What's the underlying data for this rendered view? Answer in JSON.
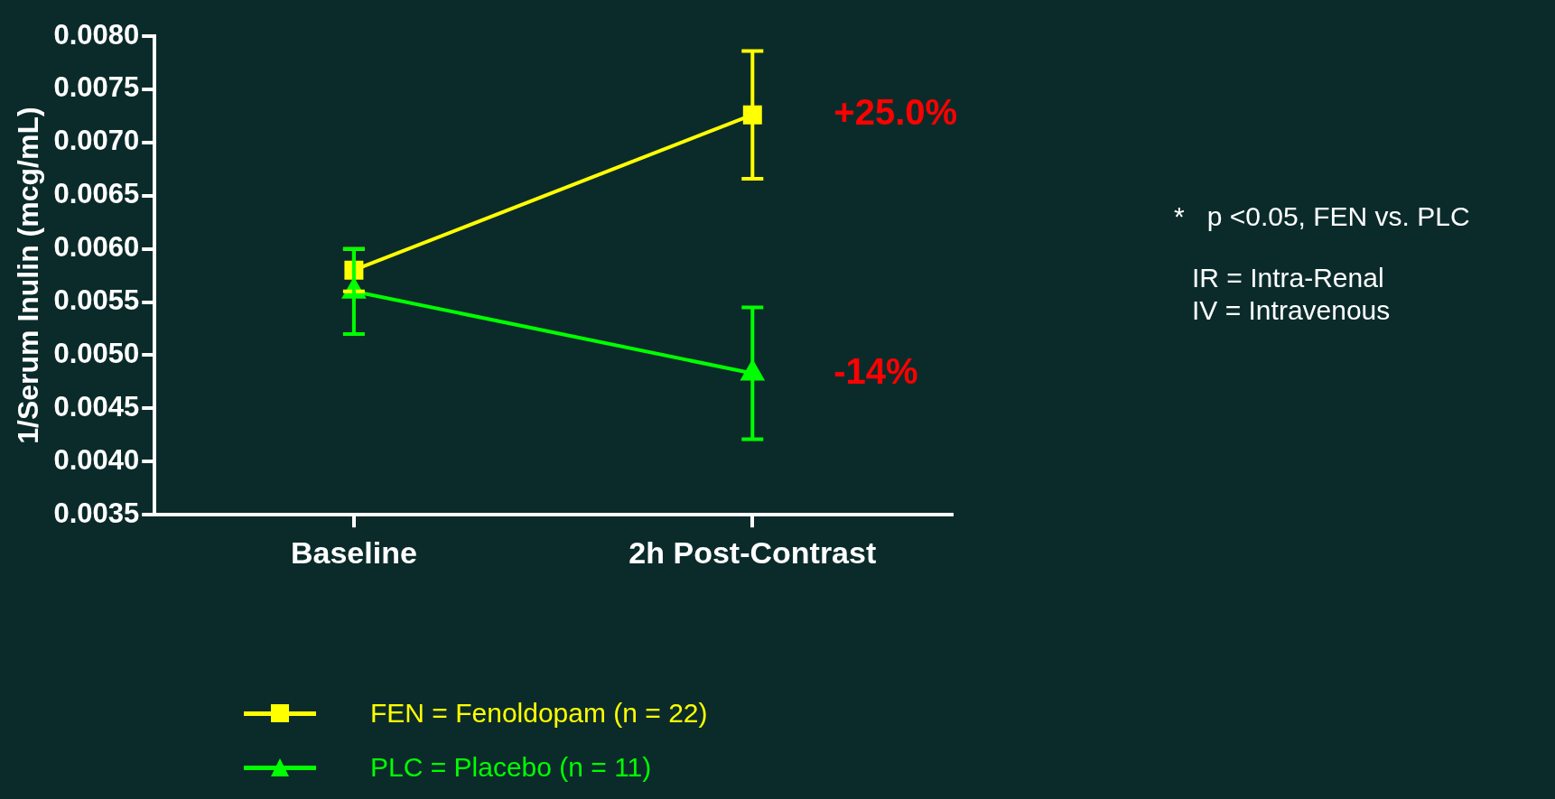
{
  "chart_data": {
    "type": "line",
    "ylabel": "1/Serum Inulin (mcg/mL)",
    "categories": [
      "Baseline",
      "2h Post-Contrast"
    ],
    "series": [
      {
        "name": "FEN = Fenoldopam (n = 22)",
        "color": "#ffff00",
        "marker": "square",
        "values": [
          0.0058,
          0.00726
        ],
        "errors": [
          0.0002,
          0.0006
        ]
      },
      {
        "name": "PLC = Placebo (n = 11)",
        "color": "#00ff00",
        "marker": "triangle",
        "values": [
          0.0056,
          0.00483
        ],
        "errors": [
          0.0004,
          0.00062
        ]
      }
    ],
    "ylim": [
      0.0035,
      0.008
    ],
    "yticks": [
      0.0035,
      {
        "value": 0.004,
        "label": "0.0040"
      },
      0.0045,
      {
        "value": 0.005,
        "label": "0.0050"
      },
      0.0055,
      {
        "value": 0.006,
        "label": "0.0060"
      },
      0.0065,
      {
        "value": 0.007,
        "label": "0.0070"
      },
      0.0075,
      {
        "value": 0.008,
        "label": "0.0080"
      }
    ],
    "annotations": [
      {
        "text": "+25.0%",
        "x": "2h Post-Contrast",
        "y": 0.00726
      },
      {
        "text": "-14%",
        "x": "2h Post-Contrast",
        "y": 0.00483
      },
      "*   p <0.05, FEN vs. PLC",
      "IR = Intra-Renal",
      "IV = Intravenous"
    ],
    "legend": "bottom",
    "grid": false,
    "line_style": "solid"
  }
}
